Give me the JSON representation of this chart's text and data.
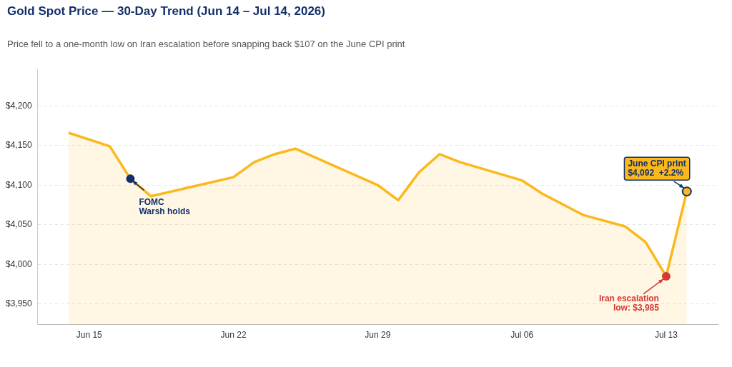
{
  "chart_data": {
    "type": "area",
    "title": "Gold Spot Price — 30-Day Trend (Jun 14 – Jul 14, 2026)",
    "subtitle": "Price fell to a one-month low on Iran escalation before snapping back $107 on the June CPI print",
    "x": [
      "2026-06-14",
      "2026-06-16",
      "2026-06-17",
      "2026-06-18",
      "2026-06-22",
      "2026-06-23",
      "2026-06-24",
      "2026-06-25",
      "2026-06-29",
      "2026-06-30",
      "2026-07-01",
      "2026-07-02",
      "2026-07-03",
      "2026-07-06",
      "2026-07-07",
      "2026-07-09",
      "2026-07-11",
      "2026-07-12",
      "2026-07-13",
      "2026-07-14"
    ],
    "series": [
      {
        "color": "#fbb81c",
        "values": [
          4166,
          4149,
          4108,
          4086,
          4110,
          4129,
          4139,
          4146,
          4100,
          4081,
          4116,
          4139,
          4129,
          4106,
          4089,
          4062,
          4048,
          4028,
          3985,
          4092
        ]
      }
    ],
    "xlim": [
      "2026-06-12T12:00",
      "2026-07-15T12:00"
    ],
    "xticks": [
      {
        "value": "2026-06-15",
        "label": "Jun 15"
      },
      {
        "value": "2026-06-22",
        "label": "Jun 22"
      },
      {
        "value": "2026-06-29",
        "label": "Jun 29"
      },
      {
        "value": "2026-07-06",
        "label": "Jul 06"
      },
      {
        "value": "2026-07-13",
        "label": "Jul 13"
      }
    ],
    "ylim": [
      3924,
      4246
    ],
    "yticks": [
      {
        "value": 3950,
        "label": "$3,950"
      },
      {
        "value": 4000,
        "label": "$4,000"
      },
      {
        "value": 4050,
        "label": "$4,050"
      },
      {
        "value": 4100,
        "label": "$4,100"
      },
      {
        "value": 4150,
        "label": "$4,150"
      },
      {
        "value": 4200,
        "label": "$4,200"
      }
    ],
    "grid": "y",
    "legend": false,
    "marker": "none",
    "annotations": [
      {
        "text": "FOMC\nWarsh holds",
        "x": "2026-06-17",
        "y": 4108
      },
      {
        "text": "Iran escalation\nlow: $3,985",
        "x": "2026-07-13",
        "y": 3985
      },
      {
        "text": "June CPI print\n$4,092  +2.2%",
        "x": "2026-07-14",
        "y": 4092
      }
    ]
  }
}
